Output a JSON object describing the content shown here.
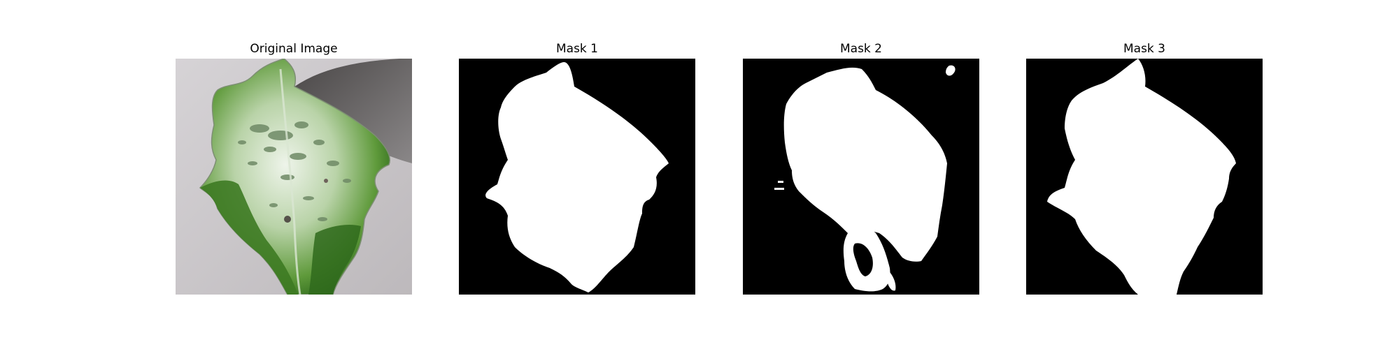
{
  "figure": {
    "panels": [
      {
        "title": "Original Image",
        "image_description": "photo of a variegated green and white leaf on a grey background"
      },
      {
        "title": "Mask 1",
        "image_description": "binary segmentation mask, white leaf silhouette on black"
      },
      {
        "title": "Mask 2",
        "image_description": "binary segmentation mask, white leaf silhouette with holes on black"
      },
      {
        "title": "Mask 3",
        "image_description": "binary segmentation mask, white leaf silhouette on black"
      }
    ]
  },
  "colors": {
    "mask_background": "#000000",
    "mask_foreground": "#ffffff",
    "photo_background": "#c9c5c8",
    "leaf_dark": "#2f6a1c",
    "leaf_mid": "#5c9a3a",
    "leaf_light": "#e6f0e0"
  }
}
